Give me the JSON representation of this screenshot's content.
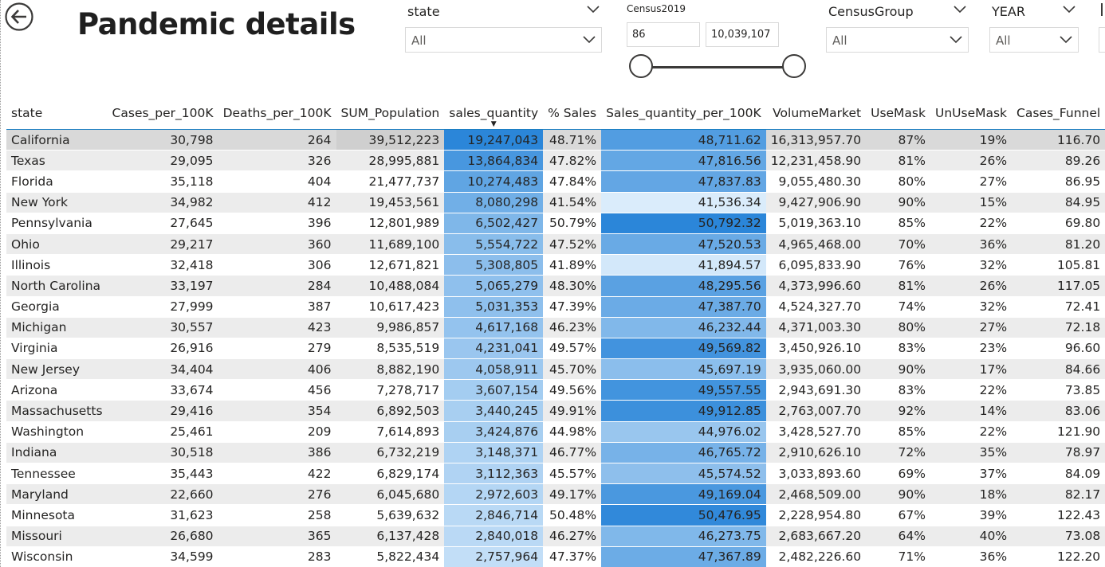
{
  "header": {
    "title": "Pandemic details",
    "back_icon": "back-arrow-icon"
  },
  "slicers": {
    "state": {
      "label": "state",
      "value": "All"
    },
    "census2019": {
      "label": "Census2019",
      "min": "86",
      "max": "10,039,107",
      "range_selected": [
        0,
        1
      ]
    },
    "census_group": {
      "label": "CensusGroup",
      "value": "All"
    },
    "year": {
      "label": "YEAR",
      "value": "All"
    }
  },
  "table": {
    "columns": [
      "state",
      "Cases_per_100K",
      "Deaths_per_100K",
      "SUM_Population",
      "sales_quantity",
      "% Sales",
      "Sales_quantity_per_100K",
      "VolumeMarket",
      "UseMask",
      "UnUseMask",
      "Cases_Funnel"
    ],
    "sorted_column": "sales_quantity",
    "sort_direction": "descending",
    "rows": [
      {
        "state": "California",
        "cases": "30,798",
        "deaths": "264",
        "pop": "39,512,223",
        "sales": "19,247,043",
        "pct": "48.71%",
        "per100k": "48,711.62",
        "volume": "16,313,957.70",
        "use": "87%",
        "unuse": "19%",
        "funnel": "116.70"
      },
      {
        "state": "Texas",
        "cases": "29,095",
        "deaths": "326",
        "pop": "28,995,881",
        "sales": "13,864,834",
        "pct": "47.82%",
        "per100k": "47,816.56",
        "volume": "12,231,458.90",
        "use": "81%",
        "unuse": "26%",
        "funnel": "89.26"
      },
      {
        "state": "Florida",
        "cases": "35,118",
        "deaths": "404",
        "pop": "21,477,737",
        "sales": "10,274,483",
        "pct": "47.84%",
        "per100k": "47,837.83",
        "volume": "9,055,480.30",
        "use": "80%",
        "unuse": "27%",
        "funnel": "86.95"
      },
      {
        "state": "New York",
        "cases": "34,982",
        "deaths": "412",
        "pop": "19,453,561",
        "sales": "8,080,298",
        "pct": "41.54%",
        "per100k": "41,536.34",
        "volume": "9,427,906.90",
        "use": "90%",
        "unuse": "15%",
        "funnel": "84.95"
      },
      {
        "state": "Pennsylvania",
        "cases": "27,645",
        "deaths": "396",
        "pop": "12,801,989",
        "sales": "6,502,427",
        "pct": "50.79%",
        "per100k": "50,792.32",
        "volume": "5,019,363.10",
        "use": "85%",
        "unuse": "22%",
        "funnel": "69.80"
      },
      {
        "state": "Ohio",
        "cases": "29,217",
        "deaths": "360",
        "pop": "11,689,100",
        "sales": "5,554,722",
        "pct": "47.52%",
        "per100k": "47,520.53",
        "volume": "4,965,468.00",
        "use": "70%",
        "unuse": "36%",
        "funnel": "81.20"
      },
      {
        "state": "Illinois",
        "cases": "32,418",
        "deaths": "306",
        "pop": "12,671,821",
        "sales": "5,308,805",
        "pct": "41.89%",
        "per100k": "41,894.57",
        "volume": "6,095,833.90",
        "use": "76%",
        "unuse": "32%",
        "funnel": "105.81"
      },
      {
        "state": "North Carolina",
        "cases": "33,197",
        "deaths": "284",
        "pop": "10,488,084",
        "sales": "5,065,279",
        "pct": "48.30%",
        "per100k": "48,295.56",
        "volume": "4,373,996.60",
        "use": "81%",
        "unuse": "26%",
        "funnel": "117.05"
      },
      {
        "state": "Georgia",
        "cases": "27,999",
        "deaths": "387",
        "pop": "10,617,423",
        "sales": "5,031,353",
        "pct": "47.39%",
        "per100k": "47,387.70",
        "volume": "4,524,327.70",
        "use": "74%",
        "unuse": "32%",
        "funnel": "72.41"
      },
      {
        "state": "Michigan",
        "cases": "30,557",
        "deaths": "423",
        "pop": "9,986,857",
        "sales": "4,617,168",
        "pct": "46.23%",
        "per100k": "46,232.44",
        "volume": "4,371,003.30",
        "use": "80%",
        "unuse": "27%",
        "funnel": "72.18"
      },
      {
        "state": "Virginia",
        "cases": "26,916",
        "deaths": "279",
        "pop": "8,535,519",
        "sales": "4,231,041",
        "pct": "49.57%",
        "per100k": "49,569.82",
        "volume": "3,450,926.10",
        "use": "83%",
        "unuse": "23%",
        "funnel": "96.60"
      },
      {
        "state": "New Jersey",
        "cases": "34,404",
        "deaths": "406",
        "pop": "8,882,190",
        "sales": "4,058,911",
        "pct": "45.70%",
        "per100k": "45,697.19",
        "volume": "3,935,060.00",
        "use": "90%",
        "unuse": "17%",
        "funnel": "84.66"
      },
      {
        "state": "Arizona",
        "cases": "33,674",
        "deaths": "456",
        "pop": "7,278,717",
        "sales": "3,607,154",
        "pct": "49.56%",
        "per100k": "49,557.55",
        "volume": "2,943,691.30",
        "use": "83%",
        "unuse": "22%",
        "funnel": "73.85"
      },
      {
        "state": "Massachusetts",
        "cases": "29,416",
        "deaths": "354",
        "pop": "6,892,503",
        "sales": "3,440,245",
        "pct": "49.91%",
        "per100k": "49,912.85",
        "volume": "2,763,007.70",
        "use": "92%",
        "unuse": "14%",
        "funnel": "83.06"
      },
      {
        "state": "Washington",
        "cases": "25,461",
        "deaths": "209",
        "pop": "7,614,893",
        "sales": "3,424,876",
        "pct": "44.98%",
        "per100k": "44,976.02",
        "volume": "3,428,527.70",
        "use": "85%",
        "unuse": "22%",
        "funnel": "121.90"
      },
      {
        "state": "Indiana",
        "cases": "30,518",
        "deaths": "386",
        "pop": "6,732,219",
        "sales": "3,148,371",
        "pct": "46.77%",
        "per100k": "46,765.72",
        "volume": "2,910,626.10",
        "use": "72%",
        "unuse": "35%",
        "funnel": "78.97"
      },
      {
        "state": "Tennessee",
        "cases": "35,443",
        "deaths": "422",
        "pop": "6,829,174",
        "sales": "3,112,363",
        "pct": "45.57%",
        "per100k": "45,574.52",
        "volume": "3,033,893.60",
        "use": "69%",
        "unuse": "37%",
        "funnel": "84.09"
      },
      {
        "state": "Maryland",
        "cases": "22,660",
        "deaths": "276",
        "pop": "6,045,680",
        "sales": "2,972,603",
        "pct": "49.17%",
        "per100k": "49,169.04",
        "volume": "2,468,509.00",
        "use": "90%",
        "unuse": "18%",
        "funnel": "82.17"
      },
      {
        "state": "Minnesota",
        "cases": "31,623",
        "deaths": "258",
        "pop": "5,639,632",
        "sales": "2,846,714",
        "pct": "50.48%",
        "per100k": "50,476.95",
        "volume": "2,228,954.80",
        "use": "67%",
        "unuse": "39%",
        "funnel": "122.43"
      },
      {
        "state": "Missouri",
        "cases": "26,680",
        "deaths": "365",
        "pop": "6,137,428",
        "sales": "2,840,018",
        "pct": "46.27%",
        "per100k": "46,273.75",
        "volume": "2,683,667.20",
        "use": "64%",
        "unuse": "40%",
        "funnel": "73.08"
      },
      {
        "state": "Wisconsin",
        "cases": "34,599",
        "deaths": "283",
        "pop": "5,822,434",
        "sales": "2,757,964",
        "pct": "47.37%",
        "per100k": "47,367.89",
        "volume": "2,482,226.60",
        "use": "71%",
        "unuse": "36%",
        "funnel": "122.20"
      }
    ]
  },
  "colors": {
    "heat_dark": "#2b86d9",
    "heat_light": "#e3f1fd",
    "population_highlight": "#cfcfcf",
    "header_rule": "#1b7ec2"
  }
}
